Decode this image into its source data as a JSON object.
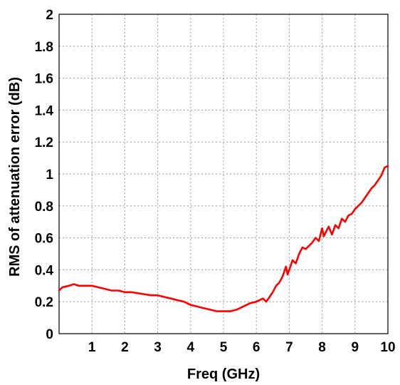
{
  "chart_data": {
    "type": "line",
    "title": "",
    "xlabel": "Freq (GHz)",
    "ylabel": "RMS of attenuation error (dB)",
    "xlim": [
      0,
      10
    ],
    "ylim": [
      0,
      2
    ],
    "x_ticks": [
      "1",
      "2",
      "3",
      "4",
      "5",
      "6",
      "7",
      "8",
      "9",
      "10"
    ],
    "y_ticks": [
      "0",
      "0.2",
      "0.4",
      "0.6",
      "0.8",
      "1",
      "1.2",
      "1.4",
      "1.6",
      "1.8",
      "2"
    ],
    "grid": true,
    "legend": "none",
    "series": [
      {
        "color": "#ff0000",
        "x": [
          0.0,
          0.1,
          0.3,
          0.45,
          0.6,
          0.8,
          1.0,
          1.2,
          1.4,
          1.6,
          1.8,
          2.0,
          2.2,
          2.5,
          2.8,
          3.0,
          3.2,
          3.4,
          3.6,
          3.8,
          4.0,
          4.2,
          4.4,
          4.6,
          4.8,
          5.0,
          5.2,
          5.4,
          5.6,
          5.8,
          6.0,
          6.2,
          6.3,
          6.4,
          6.5,
          6.6,
          6.7,
          6.8,
          6.9,
          6.95,
          7.0,
          7.1,
          7.2,
          7.3,
          7.4,
          7.5,
          7.6,
          7.7,
          7.8,
          7.9,
          8.0,
          8.05,
          8.1,
          8.2,
          8.3,
          8.4,
          8.5,
          8.6,
          8.7,
          8.8,
          8.9,
          9.0,
          9.1,
          9.2,
          9.3,
          9.4,
          9.5,
          9.6,
          9.7,
          9.8,
          9.9,
          10.0
        ],
        "y": [
          0.27,
          0.29,
          0.3,
          0.31,
          0.3,
          0.3,
          0.3,
          0.29,
          0.28,
          0.27,
          0.27,
          0.26,
          0.26,
          0.25,
          0.24,
          0.24,
          0.23,
          0.22,
          0.21,
          0.2,
          0.18,
          0.17,
          0.16,
          0.15,
          0.14,
          0.14,
          0.14,
          0.15,
          0.17,
          0.19,
          0.2,
          0.22,
          0.2,
          0.23,
          0.26,
          0.3,
          0.32,
          0.36,
          0.42,
          0.37,
          0.4,
          0.46,
          0.44,
          0.5,
          0.54,
          0.53,
          0.55,
          0.57,
          0.6,
          0.58,
          0.66,
          0.61,
          0.63,
          0.67,
          0.62,
          0.68,
          0.66,
          0.72,
          0.7,
          0.74,
          0.75,
          0.78,
          0.8,
          0.82,
          0.85,
          0.88,
          0.91,
          0.93,
          0.96,
          0.99,
          1.04,
          1.05
        ]
      }
    ]
  }
}
